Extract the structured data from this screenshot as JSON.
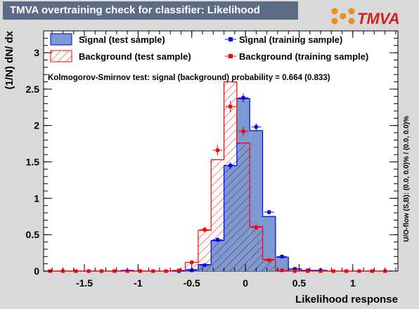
{
  "title": "TMVA overtraining check for classifier: Likelihood",
  "logo_text": "TMVA",
  "colors": {
    "signal_fill": "#7d99d1",
    "signal_line": "#0000ee",
    "background_line": "#ff0000",
    "background_hatch": "#ff0000",
    "title_bg": "#5c6c84",
    "frame_bg": "#ffffff",
    "canvas_bg": "#d9d9d9"
  },
  "legend": {
    "signal_test": "Signal (test sample)",
    "background_test": "Background (test sample)",
    "signal_train": "Signal (training sample)",
    "background_train": "Background (training sample)"
  },
  "ks_text": "Kolmogorov-Smirnov test: signal (background) probability = 0.664 (0.833)",
  "side_text": "U/O-flow (S,B): (0.0, 0.0)% / (0.0, 0.0)%",
  "chart_data": {
    "type": "histogram",
    "xlabel": "Likelihood response",
    "ylabel": "(1/N) dN/ dx",
    "xlim": [
      -1.88,
      1.42
    ],
    "ylim": [
      0,
      3.3
    ],
    "xticks": [
      -1.5,
      -1,
      -0.5,
      0,
      0.5,
      1
    ],
    "xtick_labels": [
      "-1.5",
      "-1",
      "-0.5",
      "0",
      "0.5",
      "1"
    ],
    "yticks": [
      0,
      0.5,
      1,
      1.5,
      2,
      2.5,
      3
    ],
    "ytick_labels": [
      "0",
      "0.5",
      "1",
      "1.5",
      "2",
      "2.5",
      "3"
    ],
    "bin_edges": [
      -1.88,
      -1.76,
      -1.64,
      -1.52,
      -1.4,
      -1.28,
      -1.16,
      -1.04,
      -0.92,
      -0.8,
      -0.68,
      -0.56,
      -0.44,
      -0.32,
      -0.2,
      -0.08,
      0.04,
      0.16,
      0.28,
      0.4,
      0.52,
      0.64,
      0.76,
      0.88,
      1.0,
      1.12,
      1.24,
      1.36
    ],
    "series": [
      {
        "name": "Signal (test sample)",
        "kind": "filled",
        "values": [
          0,
          0,
          0,
          0,
          0,
          0,
          0.01,
          0,
          0,
          0,
          0,
          0.02,
          0.09,
          0.42,
          1.45,
          2.37,
          1.93,
          0.75,
          0.19,
          0.03,
          0.01,
          0.01,
          0,
          0,
          0,
          0,
          0
        ]
      },
      {
        "name": "Background (test sample)",
        "kind": "hatched",
        "values": [
          0,
          0,
          0,
          0,
          0,
          0,
          0,
          0,
          0,
          0,
          0.01,
          0.12,
          0.56,
          1.53,
          2.6,
          1.76,
          0.61,
          0.16,
          0.01,
          0,
          0,
          0,
          0,
          0,
          0,
          0,
          0
        ]
      },
      {
        "name": "Signal (training sample)",
        "kind": "points",
        "values": [
          0,
          0,
          0,
          0,
          0,
          0,
          0,
          0,
          0,
          0,
          0,
          0.01,
          0.08,
          0.43,
          1.45,
          2.38,
          1.98,
          0.81,
          0.2,
          0.03,
          0.01,
          0.01,
          0,
          0,
          0,
          0,
          0
        ],
        "errors": [
          0,
          0,
          0,
          0,
          0,
          0,
          0,
          0,
          0,
          0,
          0,
          0.01,
          0.02,
          0.03,
          0.05,
          0.06,
          0.05,
          0.03,
          0.02,
          0.01,
          0.01,
          0.01,
          0,
          0,
          0,
          0,
          0
        ]
      },
      {
        "name": "Background (training sample)",
        "kind": "points",
        "values": [
          0,
          0,
          0,
          0,
          0,
          0,
          0,
          0,
          0,
          0,
          0.01,
          0.12,
          0.57,
          1.66,
          2.26,
          1.92,
          0.6,
          0.15,
          0.01,
          0,
          0,
          0,
          0,
          0,
          0,
          0,
          0
        ],
        "errors": [
          0,
          0,
          0,
          0,
          0,
          0,
          0,
          0,
          0,
          0,
          0.01,
          0.02,
          0.04,
          0.07,
          0.08,
          0.07,
          0.04,
          0.02,
          0.01,
          0,
          0,
          0,
          0,
          0,
          0,
          0,
          0
        ]
      }
    ]
  }
}
